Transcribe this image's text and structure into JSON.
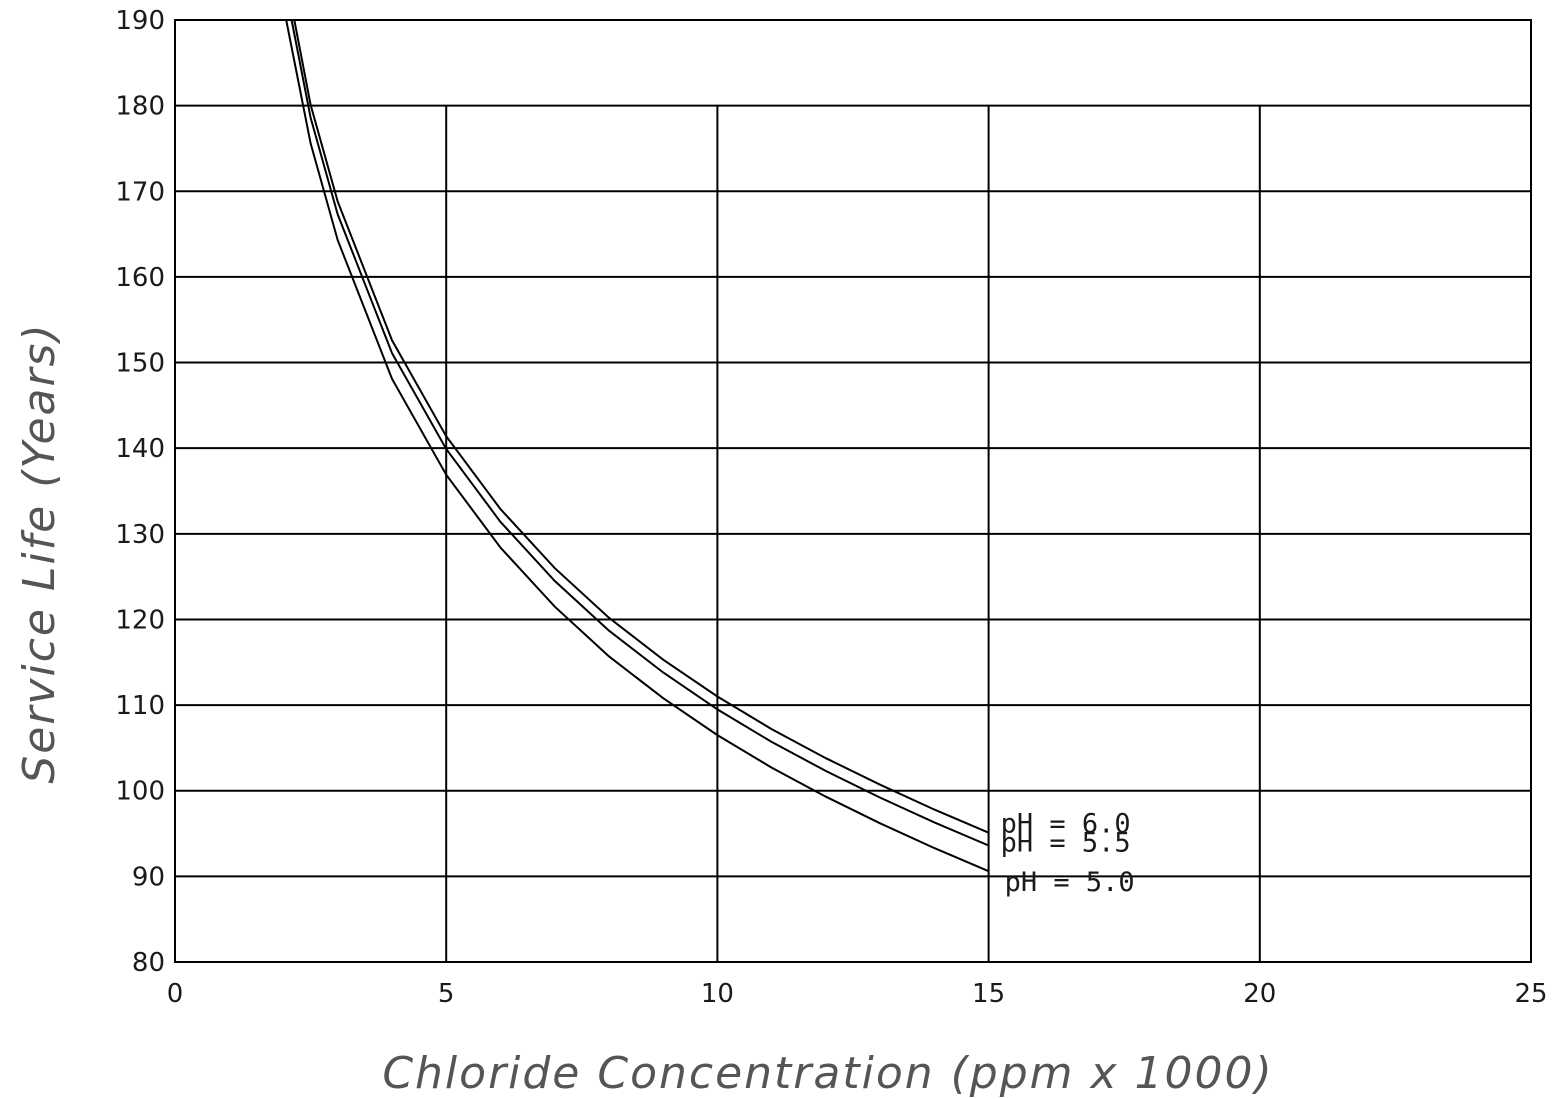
{
  "chart_data": {
    "type": "line",
    "xlabel": "Chloride Concentration (ppm x 1000)",
    "ylabel": "Service Life (Years)",
    "xlim": [
      0,
      25
    ],
    "ylim": [
      80,
      190
    ],
    "x_ticks": [
      0,
      5,
      10,
      15,
      20,
      25
    ],
    "y_ticks": [
      80,
      90,
      100,
      110,
      120,
      130,
      140,
      150,
      160,
      170,
      180,
      190
    ],
    "grid": true,
    "series": [
      {
        "name": "pH = 6.0",
        "x": [
          2.2,
          2.5,
          3,
          4,
          5,
          6,
          7,
          8,
          9,
          10,
          11,
          12,
          13,
          14,
          15
        ],
        "y": [
          190,
          180.1,
          168.8,
          152.6,
          141.4,
          132.9,
          126.0,
          120.2,
          115.3,
          111.0,
          107.2,
          103.8,
          100.7,
          97.8,
          95.1
        ]
      },
      {
        "name": "pH = 5.5",
        "x": [
          2.15,
          2.5,
          3,
          4,
          5,
          6,
          7,
          8,
          9,
          10,
          11,
          12,
          13,
          14,
          15
        ],
        "y": [
          190,
          178.6,
          167.3,
          151.1,
          139.9,
          131.4,
          124.5,
          118.7,
          113.8,
          109.5,
          105.7,
          102.3,
          99.2,
          96.3,
          93.6
        ]
      },
      {
        "name": "pH = 5.0",
        "x": [
          2.05,
          2.5,
          3,
          4,
          5,
          6,
          7,
          8,
          9,
          10,
          11,
          12,
          13,
          14,
          15
        ],
        "y": [
          190,
          175.6,
          164.3,
          148.1,
          136.9,
          128.4,
          121.5,
          115.7,
          110.8,
          106.5,
          102.7,
          99.3,
          96.2,
          93.3,
          90.6
        ]
      }
    ]
  }
}
